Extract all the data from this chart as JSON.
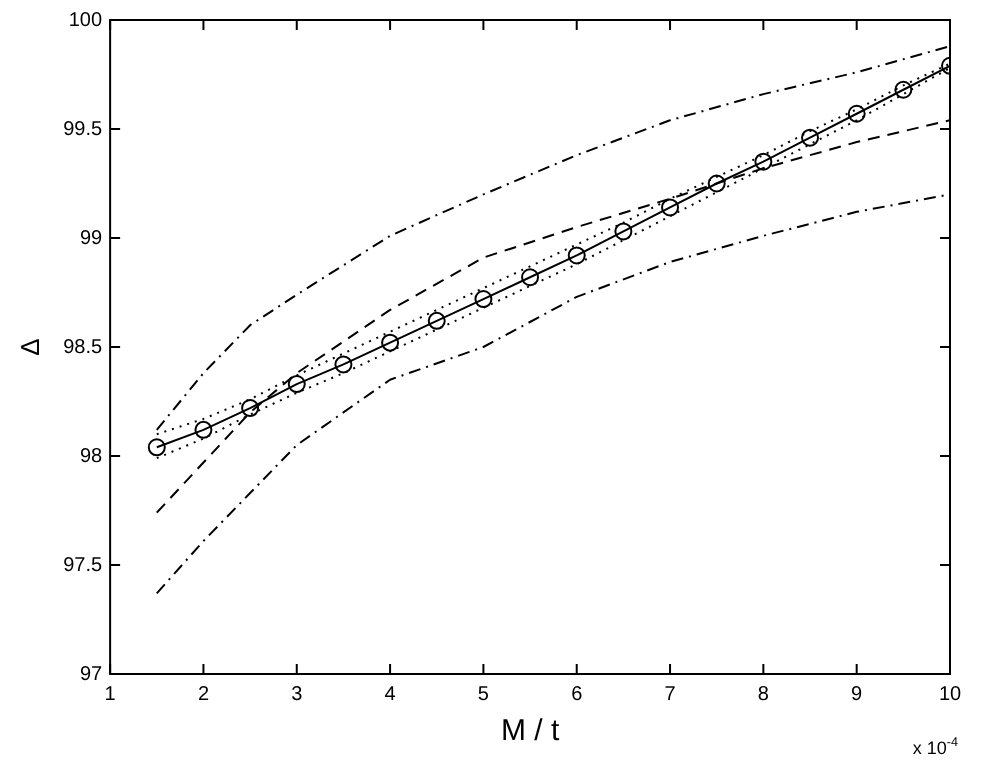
{
  "chart_data": {
    "type": "line",
    "xlabel": "M / t",
    "ylabel": "Δ",
    "annotations": [
      "x 10$^{-4}$"
    ],
    "xlim": [
      1,
      10
    ],
    "xticks": [
      1,
      2,
      3,
      4,
      5,
      6,
      7,
      8,
      9,
      10
    ],
    "ylim": [
      97,
      100
    ],
    "yticks": [
      97,
      97.5,
      98,
      98.5,
      99,
      99.5,
      100
    ],
    "grid": false,
    "legend": false,
    "series": [
      {
        "color": "#000000",
        "marker": "circle",
        "line_style": "solid",
        "x": [
          1.5,
          2,
          2.5,
          3,
          3.5,
          4,
          4.5,
          5,
          5.5,
          6,
          6.5,
          7,
          7.5,
          8,
          8.5,
          9,
          9.5,
          10
        ],
        "values": [
          98.04,
          98.12,
          98.22,
          98.33,
          98.42,
          98.52,
          98.62,
          98.72,
          98.82,
          98.92,
          99.03,
          99.14,
          99.25,
          99.35,
          99.46,
          99.57,
          99.68,
          99.79
        ]
      },
      {
        "color": "#000000",
        "marker": "none",
        "line_style": "dotted",
        "x": [
          1.5,
          2,
          2.5,
          3,
          3.5,
          4,
          4.5,
          5,
          5.5,
          6,
          6.5,
          7,
          7.5,
          8,
          8.5,
          9,
          9.5,
          10
        ],
        "values": [
          98.1,
          98.17,
          98.26,
          98.37,
          98.47,
          98.57,
          98.67,
          98.77,
          98.87,
          98.97,
          99.07,
          99.18,
          99.28,
          99.38,
          99.49,
          99.59,
          99.7,
          99.8
        ]
      },
      {
        "color": "#000000",
        "marker": "none",
        "line_style": "dotted",
        "x": [
          1.5,
          2,
          2.5,
          3,
          3.5,
          4,
          4.5,
          5,
          5.5,
          6,
          6.5,
          7,
          7.5,
          8,
          8.5,
          9,
          9.5,
          10
        ],
        "values": [
          97.99,
          98.08,
          98.19,
          98.29,
          98.38,
          98.48,
          98.58,
          98.68,
          98.78,
          98.88,
          98.99,
          99.1,
          99.21,
          99.32,
          99.43,
          99.54,
          99.66,
          99.78
        ]
      },
      {
        "color": "#000000",
        "marker": "none",
        "line_style": "dashed",
        "x": [
          1.5,
          2,
          2.5,
          3,
          4,
          5,
          6,
          7,
          8,
          9,
          10
        ],
        "values": [
          97.74,
          97.97,
          98.2,
          98.38,
          98.67,
          98.91,
          99.05,
          99.18,
          99.32,
          99.44,
          99.54
        ]
      },
      {
        "color": "#000000",
        "marker": "none",
        "line_style": "dashdot",
        "x": [
          1.5,
          2,
          2.5,
          3,
          4,
          5,
          6,
          7,
          8,
          9,
          10
        ],
        "values": [
          98.12,
          98.38,
          98.6,
          98.74,
          99.01,
          99.2,
          99.38,
          99.54,
          99.66,
          99.76,
          99.88
        ]
      },
      {
        "color": "#000000",
        "marker": "none",
        "line_style": "dashdot",
        "x": [
          1.5,
          2,
          2.5,
          3,
          4,
          5,
          6,
          7,
          8,
          9,
          10
        ],
        "values": [
          97.37,
          97.61,
          97.83,
          98.05,
          98.35,
          98.5,
          98.73,
          98.89,
          99.01,
          99.12,
          99.2
        ]
      }
    ]
  }
}
